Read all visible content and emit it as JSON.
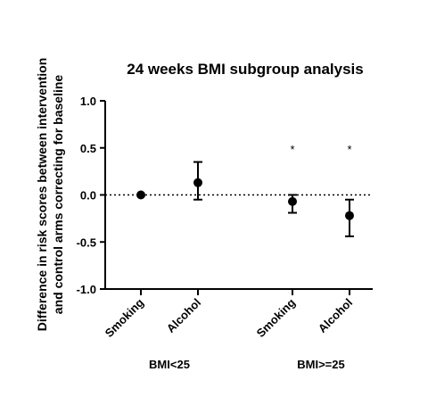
{
  "chart_data": {
    "type": "scatter",
    "title": "24 weeks BMI subgroup analysis",
    "ylabel_lines": [
      "Difference in risk scores between intervention",
      "and control arms correcting for baseline"
    ],
    "xlabel": "",
    "ylim": [
      -1.0,
      1.0
    ],
    "y_ticks": [
      "1.0",
      "0.5",
      "0.0",
      "-0.5",
      "-1.0"
    ],
    "y_tick_values": [
      1.0,
      0.5,
      0.0,
      -0.5,
      -1.0
    ],
    "reference_line": 0.0,
    "grid": false,
    "categories": [
      "Smoking",
      "Alcohol",
      "Smoking",
      "Alcohol"
    ],
    "groups": [
      {
        "label": "BMI<25",
        "members": [
          0,
          1
        ]
      },
      {
        "label": "BMI>=25",
        "members": [
          2,
          3
        ]
      }
    ],
    "points": [
      {
        "category": "Smoking",
        "group": "BMI<25",
        "value": 0.0,
        "lower": null,
        "upper": null,
        "significance": ""
      },
      {
        "category": "Alcohol",
        "group": "BMI<25",
        "value": 0.13,
        "lower": -0.05,
        "upper": 0.35,
        "significance": ""
      },
      {
        "category": "Smoking",
        "group": "BMI>=25",
        "value": -0.07,
        "lower": -0.19,
        "upper": 0.0,
        "significance": "*"
      },
      {
        "category": "Alcohol",
        "group": "BMI>=25",
        "value": -0.22,
        "lower": -0.44,
        "upper": -0.05,
        "significance": "*"
      }
    ]
  }
}
